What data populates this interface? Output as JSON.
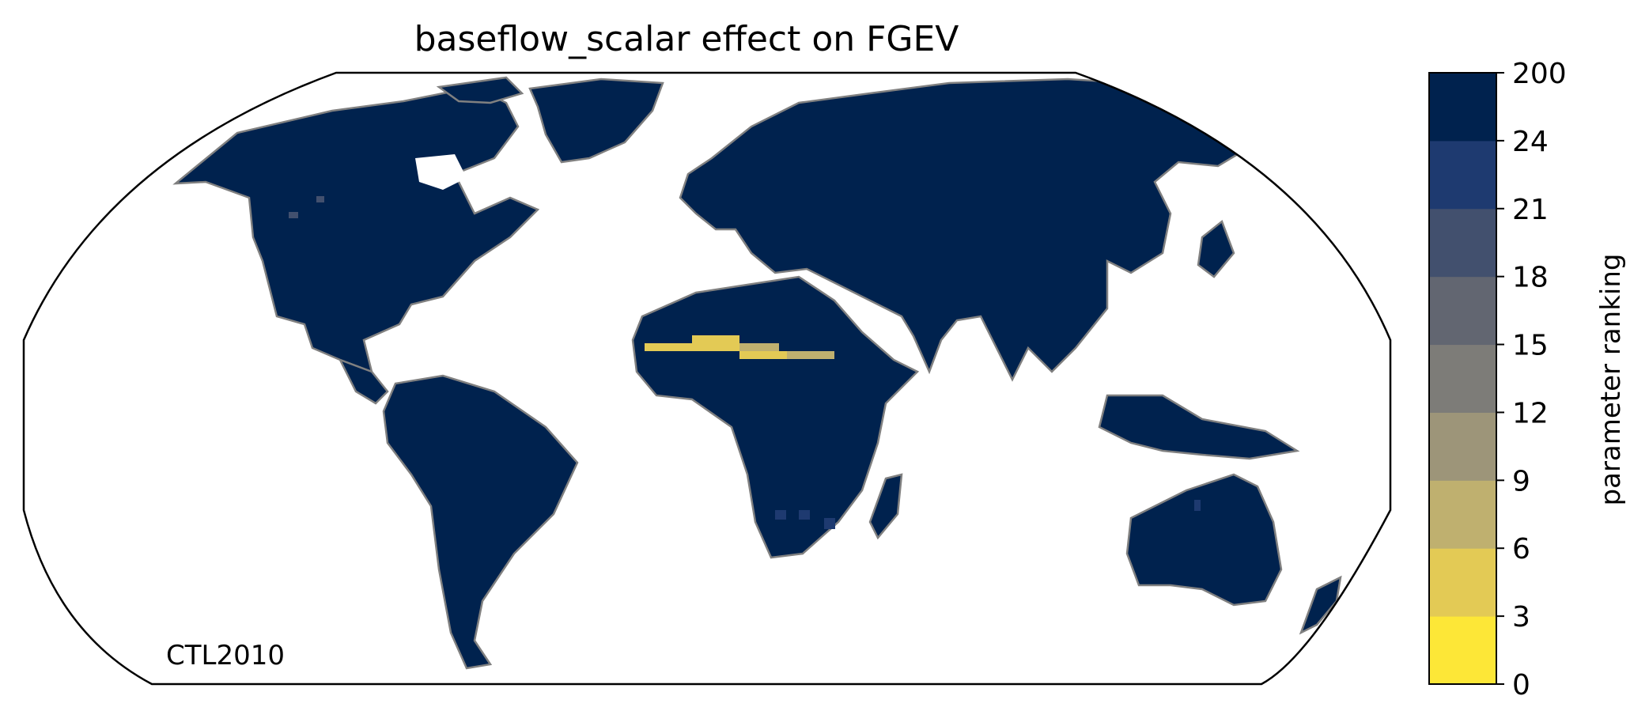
{
  "title": "baseflow_scalar effect on FGEV",
  "annotation": "CTL2010",
  "colorbar": {
    "label": "parameter ranking",
    "ticks": [
      "0",
      "3",
      "6",
      "9",
      "12",
      "15",
      "18",
      "21",
      "24",
      "200"
    ],
    "colors": [
      "#fde737",
      "#e3ca55",
      "#bfb06f",
      "#9d9579",
      "#7d7c78",
      "#626671",
      "#42506e",
      "#1e3a70",
      "#00224e"
    ]
  },
  "map": {
    "projection": "robinson",
    "land_color": "#00224e",
    "coastline_color": "#808080",
    "highlight_colors": [
      "#e3ca55",
      "#bfb06f",
      "#1e3a70"
    ]
  }
}
